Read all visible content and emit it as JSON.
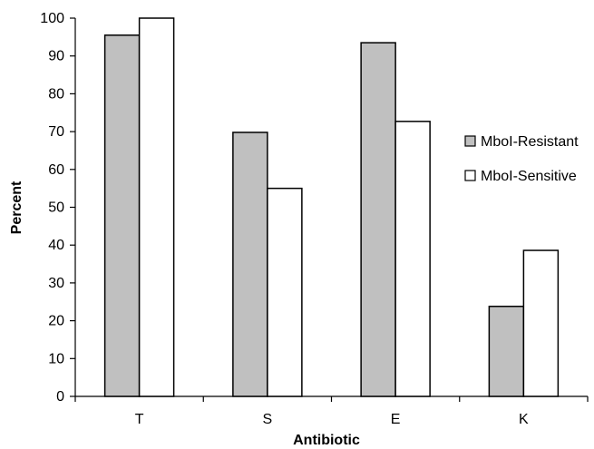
{
  "chart_data": {
    "type": "bar",
    "categories": [
      "T",
      "S",
      "E",
      "K"
    ],
    "series": [
      {
        "name": "MboI-Resistant",
        "values": [
          95.5,
          69.8,
          93.5,
          23.8
        ],
        "color": "#c0c0c0"
      },
      {
        "name": "MboI-Sensitive",
        "values": [
          100,
          55,
          72.7,
          38.6
        ],
        "color": "#ffffff"
      }
    ],
    "xlabel": "Antibiotic",
    "ylabel": "Percent",
    "ylim": [
      0,
      100
    ],
    "yticks": [
      0,
      10,
      20,
      30,
      40,
      50,
      60,
      70,
      80,
      90,
      100
    ],
    "grid": false,
    "legend_position": "right"
  }
}
